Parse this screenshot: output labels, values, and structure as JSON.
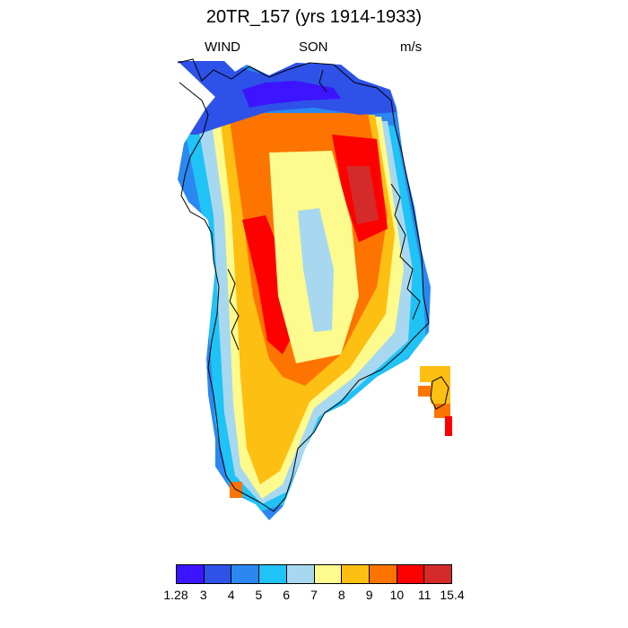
{
  "title": "20TR_157 (yrs 1914-1933)",
  "subtitle_left": "WIND",
  "subtitle_center": "SON",
  "subtitle_right": "m/s",
  "colorbar": {
    "labels": [
      "1.28",
      "3",
      "4",
      "5",
      "6",
      "7",
      "8",
      "9",
      "10",
      "11",
      "15.4"
    ],
    "colors": [
      "#3d14ff",
      "#2e52e8",
      "#2b88f0",
      "#1fc3f5",
      "#a8d8f0",
      "#fdfa8e",
      "#fdbf12",
      "#fd7400",
      "#fd0000",
      "#d42a2a"
    ]
  }
}
